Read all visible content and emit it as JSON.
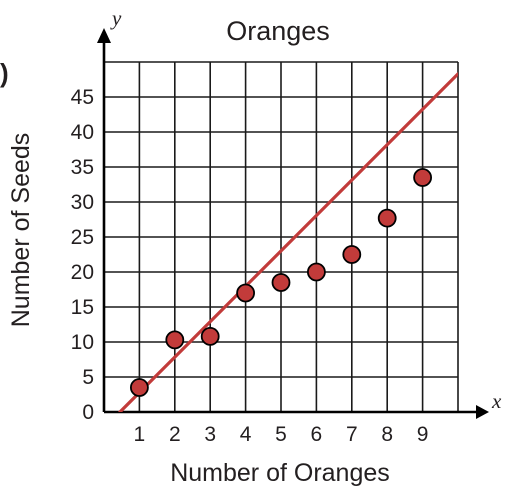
{
  "partial_label": ")",
  "chart_data": {
    "type": "scatter",
    "title": "Oranges",
    "xlabel": "Number of Oranges",
    "ylabel": "Number of Seeds",
    "x_axis_letter": "x",
    "y_axis_letter": "y",
    "xlim": [
      0,
      10
    ],
    "ylim": [
      0,
      50
    ],
    "grid": true,
    "x_ticks": [
      1,
      2,
      3,
      4,
      5,
      6,
      7,
      8,
      9
    ],
    "y_ticks": [
      0,
      5,
      10,
      15,
      20,
      25,
      30,
      35,
      40,
      45
    ],
    "points": [
      {
        "x": 1,
        "y": 3.5
      },
      {
        "x": 2,
        "y": 10.3
      },
      {
        "x": 3,
        "y": 10.8
      },
      {
        "x": 4,
        "y": 17
      },
      {
        "x": 5,
        "y": 18.5
      },
      {
        "x": 6,
        "y": 20
      },
      {
        "x": 7,
        "y": 22.5
      },
      {
        "x": 8,
        "y": 27.7
      },
      {
        "x": 9,
        "y": 33.5
      }
    ],
    "trend_line": {
      "start": [
        0.45,
        0
      ],
      "end": [
        10,
        48.3
      ]
    },
    "point_color": "#c23b3a",
    "line_color": "#c23b3a"
  }
}
